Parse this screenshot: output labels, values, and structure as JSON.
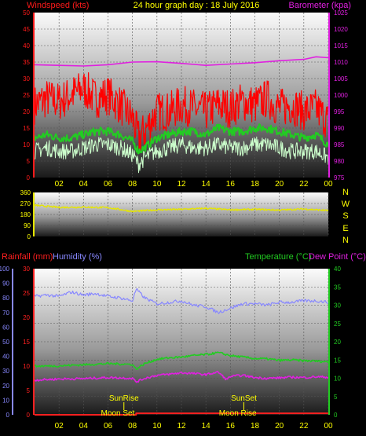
{
  "title": "24 hour graph day : 18 July 2016",
  "colors": {
    "windspeed": "#ff1a1a",
    "gust": "#ff0000",
    "avg": "#22cc22",
    "lull": "#ccffcc",
    "barometer": "#e020e0",
    "direction": "#e6e600",
    "rain": "#ff2020",
    "humidity": "#8888ff",
    "temperature": "#22cc22",
    "dewpoint": "#e020e0",
    "label_yellow": "#ffff00"
  },
  "chart_data": [
    {
      "type": "line",
      "name": "wind-baro",
      "left_axis_label": "Windspeed (kts)",
      "right_axis_label": "Barometer (kpa)",
      "left_ticks": [
        "0",
        "5",
        "10",
        "15",
        "20",
        "25",
        "30",
        "35",
        "40",
        "45",
        "50"
      ],
      "right_ticks": [
        "975",
        "980",
        "985",
        "990",
        "995",
        "1000",
        "1005",
        "1010",
        "1015",
        "1020",
        "1025"
      ],
      "ylim_left": [
        0,
        50
      ],
      "ylim_right": [
        975,
        1025
      ],
      "x_ticks": [
        "02",
        "04",
        "06",
        "08",
        "10",
        "12",
        "14",
        "16",
        "18",
        "20",
        "22",
        "00"
      ],
      "xlim_hours": [
        0,
        24
      ],
      "series": [
        {
          "key": "gust",
          "hours": [
            0,
            1,
            2,
            3,
            4,
            5,
            6,
            7,
            8,
            8.5,
            9,
            10,
            11,
            12,
            13,
            14,
            15,
            16,
            17,
            18,
            19,
            20,
            21,
            22,
            23,
            24
          ],
          "values": [
            22,
            24,
            23,
            25,
            27,
            24,
            25,
            22,
            18,
            12,
            14,
            20,
            20,
            22,
            21,
            20,
            22,
            21,
            23,
            22,
            24,
            21,
            22,
            20,
            21,
            17
          ]
        },
        {
          "key": "avg",
          "hours": [
            0,
            1,
            2,
            3,
            4,
            5,
            6,
            7,
            8,
            8.5,
            9,
            10,
            11,
            12,
            13,
            14,
            15,
            16,
            17,
            18,
            19,
            20,
            21,
            22,
            23,
            24
          ],
          "values": [
            12,
            13,
            12,
            12,
            13,
            14,
            14,
            13,
            11,
            8,
            9,
            12,
            13,
            14,
            14,
            13,
            15,
            14,
            14,
            15,
            15,
            14,
            13,
            12,
            13,
            10
          ]
        },
        {
          "key": "lull",
          "hours": [
            0,
            1,
            2,
            3,
            4,
            5,
            6,
            7,
            8,
            8.5,
            9,
            10,
            11,
            12,
            13,
            14,
            15,
            16,
            17,
            18,
            19,
            20,
            21,
            22,
            23,
            24
          ],
          "values": [
            8,
            9,
            8,
            8,
            9,
            10,
            10,
            9,
            7,
            4,
            6,
            8,
            9,
            10,
            9,
            9,
            10,
            9,
            9,
            10,
            10,
            9,
            8,
            8,
            8,
            6
          ]
        },
        {
          "key": "barometer",
          "hours": [
            0,
            2,
            4,
            6,
            8,
            10,
            12,
            14,
            16,
            18,
            20,
            22,
            23,
            24
          ],
          "values": [
            1009.2,
            1009.0,
            1008.8,
            1009.2,
            1010.0,
            1010.1,
            1009.6,
            1009.0,
            1009.4,
            1009.8,
            1010.4,
            1010.8,
            1011.6,
            1011.3
          ]
        }
      ]
    },
    {
      "type": "line",
      "name": "wind-direction",
      "left_ticks": [
        "0",
        "90",
        "180",
        "270",
        "360"
      ],
      "ylim_left": [
        0,
        360
      ],
      "compass_labels": [
        "N",
        "W",
        "S",
        "E",
        "N"
      ],
      "series": [
        {
          "key": "direction",
          "hours": [
            0,
            2,
            4,
            6,
            8,
            10,
            12,
            14,
            16,
            18,
            20,
            22,
            24
          ],
          "values": [
            255,
            238,
            240,
            236,
            205,
            218,
            222,
            230,
            218,
            222,
            216,
            225,
            212
          ]
        }
      ]
    },
    {
      "type": "line",
      "name": "rain-humidity-temp",
      "rain_label": "Rainfall (mm)",
      "humidity_label": "Humidity (%)",
      "temp_label": "Temperature (°C)",
      "dewpoint_label": "Dew Point (°C)",
      "humidity_ticks": [
        "0",
        "10",
        "20",
        "30",
        "40",
        "50",
        "60",
        "70",
        "80",
        "90",
        "100"
      ],
      "rain_ticks": [
        "0",
        "5",
        "10",
        "15",
        "20",
        "25",
        "30"
      ],
      "temp_ticks": [
        "0",
        "5",
        "10",
        "15",
        "20",
        "25",
        "30",
        "35",
        "40"
      ],
      "ylim_humidity": [
        0,
        100
      ],
      "ylim_rain": [
        0,
        30
      ],
      "ylim_temp": [
        0,
        40
      ],
      "x_ticks": [
        "02",
        "04",
        "06",
        "08",
        "10",
        "12",
        "14",
        "16",
        "18",
        "20",
        "22",
        "00"
      ],
      "sunrise": {
        "label": "SunRise",
        "hour": 7.3
      },
      "sunset": {
        "label": "SunSet",
        "hour": 17.1
      },
      "moonset": {
        "label": "Moon Set",
        "hour": 6.8
      },
      "moonrise": {
        "label": "Moon Rise",
        "hour": 16.6
      },
      "series": [
        {
          "key": "humidity",
          "hours": [
            0,
            1,
            2,
            3,
            4,
            5,
            6,
            7,
            8,
            8.3,
            9,
            10,
            11,
            12,
            13,
            14,
            15,
            16,
            17,
            18,
            19,
            20,
            21,
            22,
            23,
            24
          ],
          "values": [
            81,
            82,
            81,
            84,
            82,
            83,
            81,
            80,
            78,
            86,
            80,
            76,
            77,
            78,
            75,
            74,
            70,
            73,
            76,
            76,
            75,
            77,
            77,
            78,
            78,
            77
          ]
        },
        {
          "key": "temperature",
          "hours": [
            0,
            2,
            4,
            6,
            8,
            8.3,
            9,
            10,
            11,
            12,
            13,
            14,
            15,
            16,
            17,
            18,
            19,
            20,
            21,
            22,
            23,
            24
          ],
          "values": [
            13.3,
            13.4,
            13.7,
            14.0,
            13.8,
            12.5,
            14.0,
            15.2,
            15.6,
            15.8,
            16.2,
            16.5,
            17.0,
            16.2,
            15.8,
            15.4,
            15.3,
            14.9,
            15.0,
            14.8,
            14.7,
            14.5
          ]
        },
        {
          "key": "dewpoint",
          "hours": [
            0,
            2,
            4,
            6,
            8,
            8.3,
            9,
            10,
            11,
            12,
            13,
            14,
            15,
            15.7,
            16,
            17,
            18,
            19,
            20,
            21,
            22,
            23,
            24
          ],
          "values": [
            9.5,
            9.8,
            9.9,
            10.2,
            10.0,
            9.0,
            10.0,
            10.8,
            11.1,
            11.5,
            11.3,
            11.0,
            11.7,
            9.6,
            10.5,
            10.8,
            10.2,
            10.0,
            10.1,
            10.3,
            10.2,
            10.4,
            10.3
          ]
        },
        {
          "key": "rain",
          "hours": [
            0,
            8.3,
            8.3,
            24
          ],
          "values": [
            0,
            0,
            0.3,
            0.3
          ]
        }
      ]
    }
  ]
}
